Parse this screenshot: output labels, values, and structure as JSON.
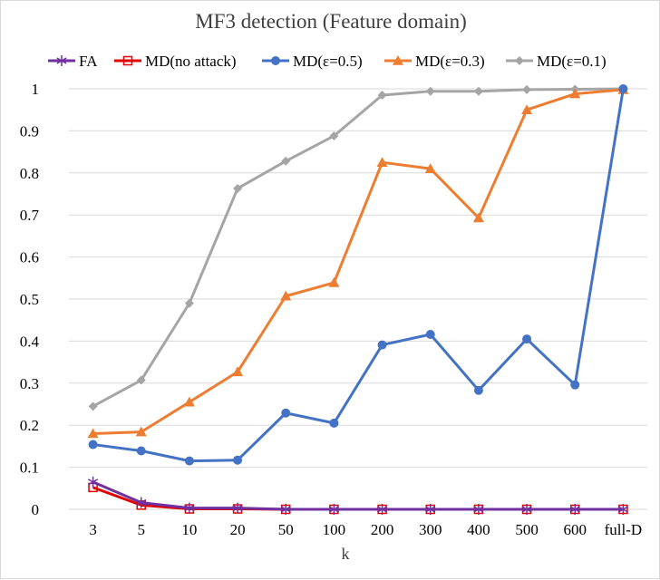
{
  "chart_data": {
    "type": "line",
    "title": "MF3 detection (Feature domain)",
    "xlabel": "k",
    "ylabel": "",
    "categories": [
      "3",
      "5",
      "10",
      "20",
      "50",
      "100",
      "200",
      "300",
      "400",
      "500",
      "600",
      "full-D"
    ],
    "ylim": [
      0,
      1
    ],
    "yticks": [
      "0",
      "0.1",
      "0.2",
      "0.3",
      "0.4",
      "0.5",
      "0.6",
      "0.7",
      "0.8",
      "0.9",
      "1"
    ],
    "grid": true,
    "legend_position": "top",
    "series": [
      {
        "name": "FA",
        "color": "#7030a0",
        "marker": "star",
        "values": [
          0.065,
          0.016,
          0.003,
          0.003,
          0.0,
          0.0,
          0.0,
          0.0,
          0.0,
          0.0,
          0.0,
          0.0
        ]
      },
      {
        "name": "MD(no attack)",
        "color": "#e00000",
        "marker": "square",
        "values": [
          0.052,
          0.01,
          0.001,
          0.001,
          0.0,
          0.0,
          0.0,
          0.0,
          0.0,
          0.0,
          0.0,
          0.0
        ]
      },
      {
        "name": "MD(ε=0.5)",
        "color": "#4472c4",
        "marker": "circle",
        "values": [
          0.154,
          0.139,
          0.115,
          0.117,
          0.229,
          0.205,
          0.391,
          0.416,
          0.283,
          0.405,
          0.296,
          1.0
        ]
      },
      {
        "name": "MD(ε=0.3)",
        "color": "#ed7d31",
        "marker": "triangle",
        "values": [
          0.18,
          0.184,
          0.255,
          0.327,
          0.507,
          0.539,
          0.825,
          0.81,
          0.693,
          0.95,
          0.988,
          0.998
        ]
      },
      {
        "name": "MD(ε=0.1)",
        "color": "#a5a5a5",
        "marker": "diamond",
        "values": [
          0.245,
          0.307,
          0.49,
          0.763,
          0.828,
          0.888,
          0.985,
          0.994,
          0.994,
          0.998,
          0.999,
          1.0
        ]
      }
    ]
  }
}
